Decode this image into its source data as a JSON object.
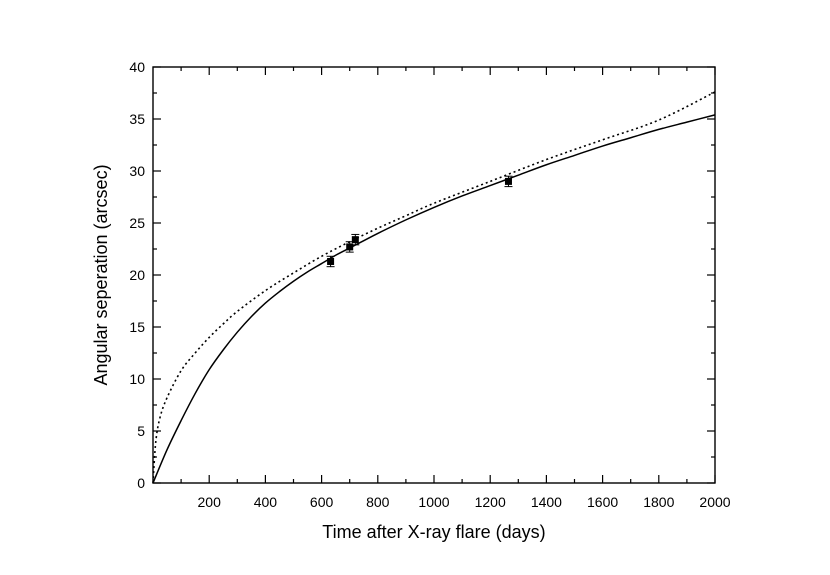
{
  "chart_data": {
    "type": "line",
    "title": "",
    "xlabel": "Time after X-ray flare (days)",
    "ylabel": "Angular seperation (arcsec)",
    "xlim": [
      0,
      2000
    ],
    "ylim": [
      0,
      40
    ],
    "x_major_ticks": [
      200,
      400,
      600,
      800,
      1000,
      1200,
      1400,
      1600,
      1800,
      2000
    ],
    "y_major_ticks": [
      0,
      5,
      10,
      15,
      20,
      25,
      30,
      35,
      40
    ],
    "grid": false,
    "legend": "none",
    "series": [
      {
        "style": "solid",
        "color": "#000000",
        "x": [
          0,
          50,
          100,
          150,
          200,
          250,
          300,
          350,
          400,
          450,
          500,
          550,
          600,
          650,
          700,
          750,
          800,
          900,
          1000,
          1100,
          1200,
          1300,
          1400,
          1500,
          1600,
          1700,
          1800,
          1900,
          2000
        ],
        "y": [
          0,
          3.2,
          6.0,
          8.6,
          10.9,
          12.8,
          14.5,
          16.0,
          17.3,
          18.4,
          19.4,
          20.3,
          21.1,
          21.9,
          22.6,
          23.3,
          24.0,
          25.3,
          26.5,
          27.6,
          28.6,
          29.6,
          30.6,
          31.5,
          32.4,
          33.2,
          34.0,
          34.7,
          35.4
        ]
      },
      {
        "style": "dotted",
        "color": "#000000",
        "x": [
          0,
          10,
          25,
          50,
          100,
          150,
          200,
          250,
          300,
          400,
          500,
          600,
          700,
          800,
          900,
          1000,
          1200,
          1400,
          1600,
          1800,
          2000
        ],
        "y": [
          0,
          4.0,
          6.3,
          8.2,
          10.8,
          12.5,
          14.0,
          15.3,
          16.5,
          18.5,
          20.2,
          21.8,
          23.2,
          24.5,
          25.7,
          26.9,
          29.0,
          31.1,
          33.0,
          34.9,
          37.6
        ]
      },
      {
        "style": "markers",
        "color": "#000000",
        "marker": "square",
        "x": [
          632,
          700,
          720,
          1265
        ],
        "y": [
          21.3,
          22.7,
          23.4,
          29.0
        ],
        "yerr": [
          0.5,
          0.5,
          0.5,
          0.5
        ]
      }
    ]
  }
}
